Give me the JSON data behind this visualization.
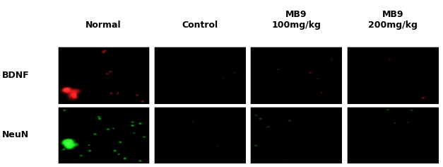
{
  "col_labels": [
    "Normal",
    "Control",
    "MB9\n100mg/kg",
    "MB9\n200mg/kg"
  ],
  "row_labels": [
    "BDNF",
    "NeuN"
  ],
  "col_label_fontsize": 9,
  "row_label_fontsize": 9,
  "fig_width": 6.27,
  "fig_height": 2.36,
  "dpi": 100,
  "bdnf_color": [
    255,
    30,
    30
  ],
  "neun_color": [
    30,
    255,
    30
  ],
  "bdnf_intensities": [
    {
      "n_bright": 10,
      "n_dim": 80,
      "bright_scale": 0.95,
      "big_blob": true
    },
    {
      "n_bright": 2,
      "n_dim": 40,
      "bright_scale": 0.35,
      "big_blob": false
    },
    {
      "n_bright": 5,
      "n_dim": 55,
      "bright_scale": 0.55,
      "big_blob": false
    },
    {
      "n_bright": 3,
      "n_dim": 45,
      "bright_scale": 0.45,
      "big_blob": false
    }
  ],
  "neun_intensities": [
    {
      "n_bright": 20,
      "n_dim": 100,
      "bright_scale": 0.95,
      "big_blob": true
    },
    {
      "n_bright": 2,
      "n_dim": 30,
      "bright_scale": 0.25,
      "big_blob": false
    },
    {
      "n_bright": 5,
      "n_dim": 40,
      "bright_scale": 0.45,
      "big_blob": false
    },
    {
      "n_bright": 4,
      "n_dim": 35,
      "bright_scale": 0.4,
      "big_blob": false
    }
  ],
  "seeds_bdnf": [
    42,
    7,
    13,
    99
  ],
  "seeds_neun": [
    55,
    21,
    88,
    33
  ]
}
